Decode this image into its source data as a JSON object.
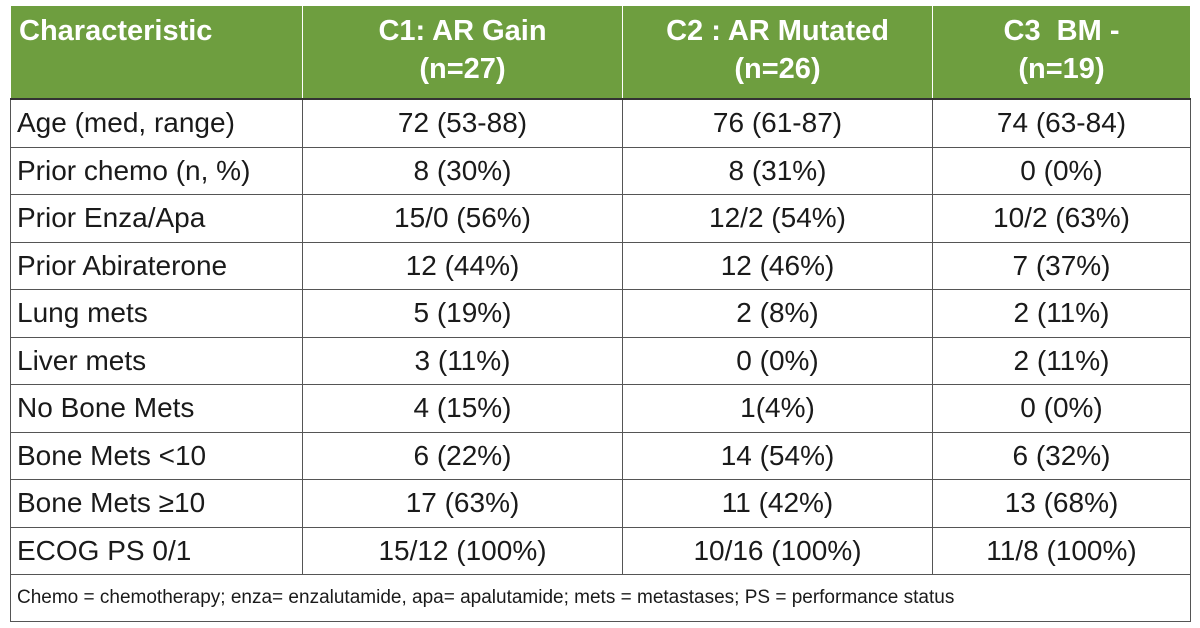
{
  "table": {
    "headers": [
      {
        "line1": "Characteristic",
        "line2": ""
      },
      {
        "line1": "C1: AR Gain",
        "line2": "(n=27)"
      },
      {
        "line1": "C2 : AR Mutated",
        "line2": "(n=26)"
      },
      {
        "line1": "C3  BM -",
        "line2": "(n=19)"
      }
    ],
    "rows": [
      [
        "Age (med, range)",
        "72 (53-88)",
        "76 (61-87)",
        "74 (63-84)"
      ],
      [
        "Prior chemo (n, %)",
        "8 (30%)",
        "8 (31%)",
        "0 (0%)"
      ],
      [
        "Prior Enza/Apa",
        "15/0 (56%)",
        "12/2 (54%)",
        "10/2 (63%)"
      ],
      [
        "Prior Abiraterone",
        "12 (44%)",
        "12 (46%)",
        "7 (37%)"
      ],
      [
        "Lung mets",
        "5 (19%)",
        "2 (8%)",
        "2 (11%)"
      ],
      [
        "Liver mets",
        "3 (11%)",
        "0 (0%)",
        "2 (11%)"
      ],
      [
        "No Bone Mets",
        "4 (15%)",
        "1(4%)",
        "0 (0%)"
      ],
      [
        "Bone Mets <10",
        "6 (22%)",
        "14 (54%)",
        "6 (32%)"
      ],
      [
        "Bone Mets ≥10",
        "17 (63%)",
        "11 (42%)",
        "13 (68%)"
      ],
      [
        "ECOG PS 0/1",
        "15/12 (100%)",
        "10/16 (100%)",
        "11/8 (100%)"
      ]
    ],
    "footnote": "Chemo = chemotherapy; enza= enzalutamide, apa= apalutamide; mets = metastases; PS = performance status"
  },
  "colors": {
    "header_bg": "#6e9e3f",
    "header_text": "#ffffff",
    "border": "#555555"
  }
}
